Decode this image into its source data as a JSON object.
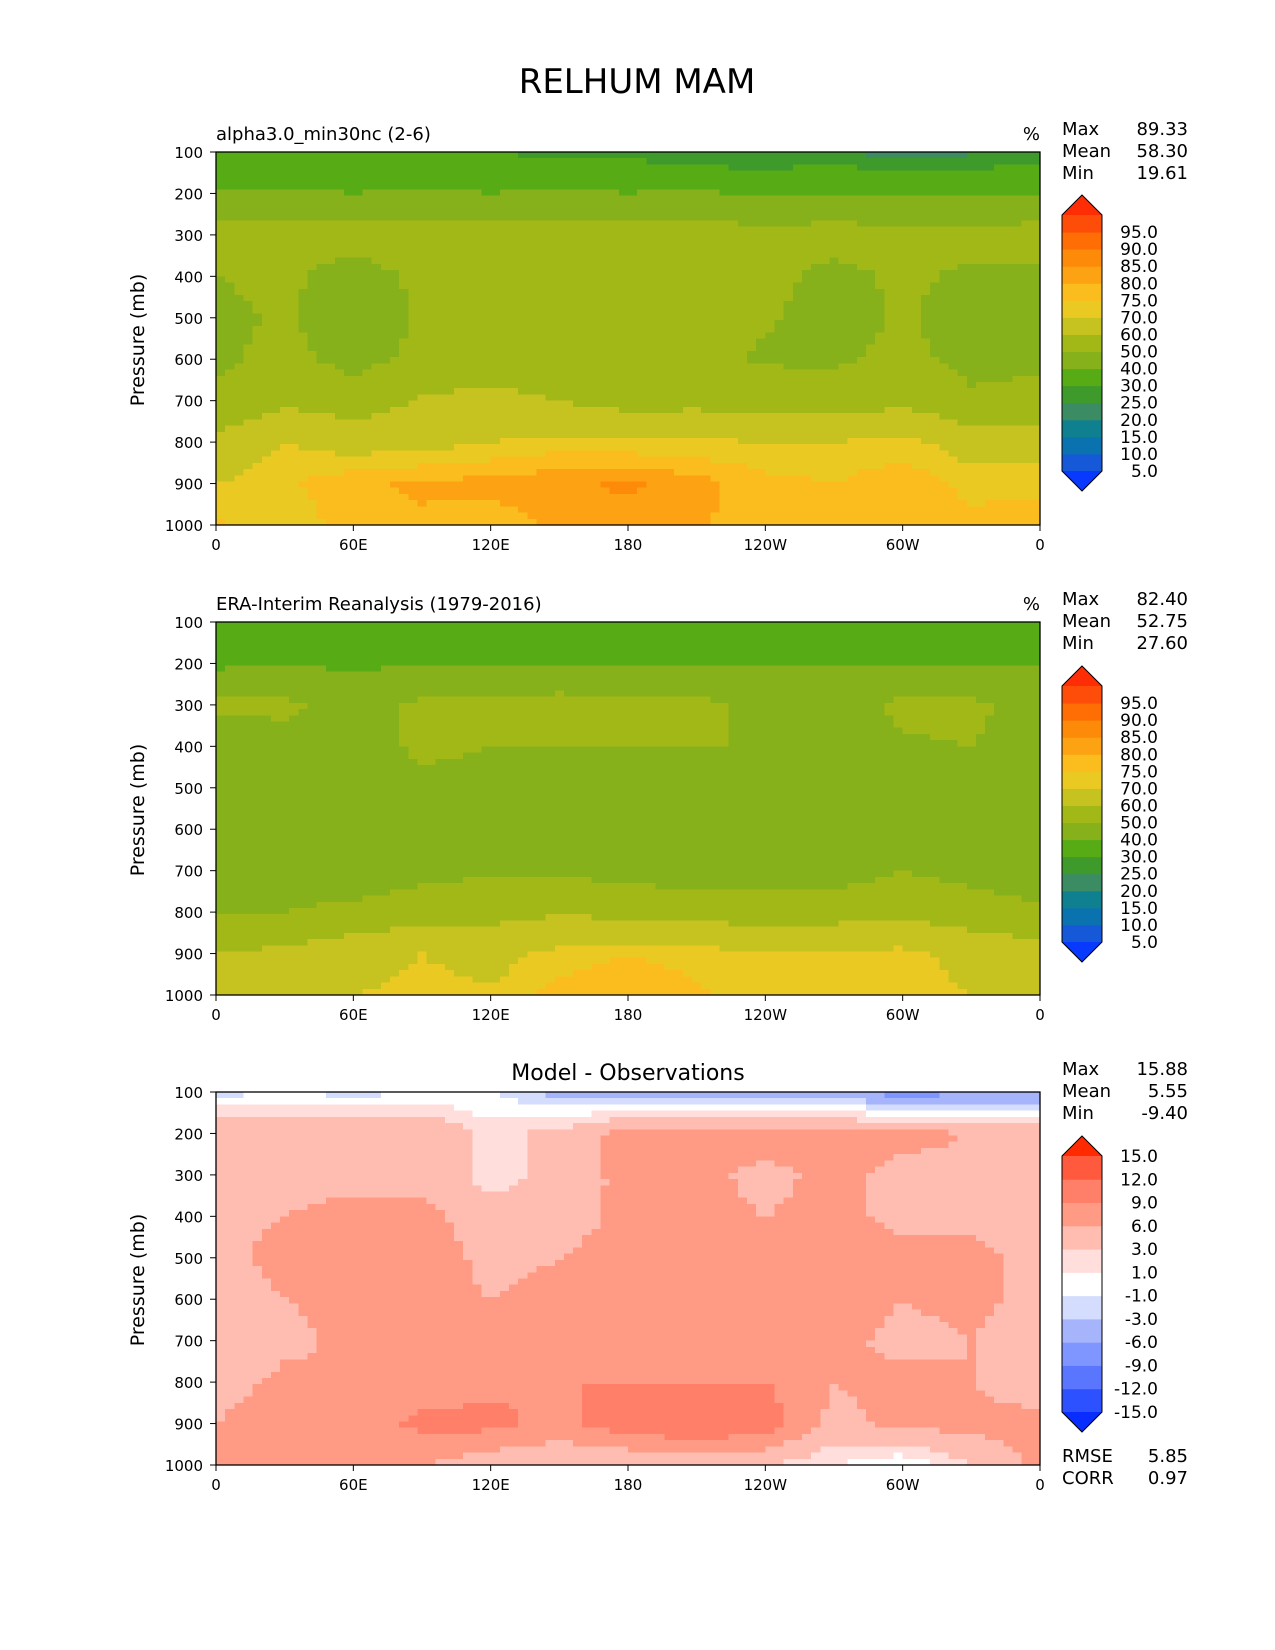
{
  "page_title": "RELHUM MAM",
  "colors": {
    "abs_levels": [
      "#0839ff",
      "#1659d8",
      "#0b72b0",
      "#0f8090",
      "#3b8c63",
      "#3f9a2c",
      "#57ac16",
      "#87b11a",
      "#a2b817",
      "#c6c21f",
      "#ebc923",
      "#fbbd1d",
      "#fda212",
      "#fe8a0a",
      "#fe6e05",
      "#fe4d08",
      "#fe2d06"
    ],
    "diff_levels": [
      "#0a2dff",
      "#2e51ff",
      "#5a76ff",
      "#7f95ff",
      "#a6b4fb",
      "#d4ddfd",
      "#ffffff",
      "#ffdedb",
      "#ffbcb0",
      "#ff9b85",
      "#ff7f69",
      "#ff5a3d",
      "#ff2a00"
    ],
    "frame": "#000000"
  },
  "chart_data": [
    {
      "type": "heatmap",
      "title": "alpha3.0_min30nc (2-6)",
      "units": "%",
      "stats": [
        {
          "label": "Max",
          "value": "89.33"
        },
        {
          "label": "Mean",
          "value": "58.30"
        },
        {
          "label": "Min",
          "value": "19.61"
        }
      ],
      "ylabel": "Pressure (mb)",
      "x_ticks": [
        "0",
        "60E",
        "120E",
        "180",
        "120W",
        "60W",
        "0"
      ],
      "y_ticks": [
        "100",
        "200",
        "300",
        "400",
        "500",
        "600",
        "700",
        "800",
        "900",
        "1000"
      ],
      "xlim": [
        0,
        360
      ],
      "ylim": [
        100,
        1000
      ],
      "colorbar_labels": [
        "95.0",
        "90.0",
        "85.0",
        "80.0",
        "75.0",
        "70.0",
        "60.0",
        "50.0",
        "40.0",
        "30.0",
        "25.0",
        "20.0",
        "15.0",
        "10.0",
        "5.0"
      ],
      "field": {
        "lon": [
          0,
          30,
          60,
          90,
          120,
          150,
          180,
          210,
          240,
          270,
          300,
          330,
          360
        ],
        "p": [
          100,
          200,
          300,
          400,
          500,
          600,
          700,
          800,
          900,
          1000
        ],
        "values": [
          [
            30,
            30,
            30,
            30,
            30,
            28,
            28,
            24,
            24,
            26,
            22,
            24,
            26
          ],
          [
            42,
            42,
            40,
            42,
            40,
            42,
            40,
            42,
            38,
            40,
            38,
            38,
            40
          ],
          [
            55,
            54,
            54,
            55,
            54,
            54,
            54,
            54,
            54,
            54,
            54,
            54,
            54
          ],
          [
            50,
            52,
            46,
            52,
            53,
            53,
            53,
            53,
            53,
            47,
            52,
            48,
            48
          ],
          [
            48,
            51,
            44,
            51,
            52,
            52,
            52,
            52,
            51,
            46,
            51,
            46,
            47
          ],
          [
            48,
            53,
            47,
            52,
            53,
            52,
            51,
            52,
            49,
            49,
            52,
            48,
            49
          ],
          [
            52,
            58,
            55,
            61,
            64,
            60,
            56,
            57,
            55,
            54,
            58,
            51,
            52
          ],
          [
            62,
            70,
            66,
            67,
            70,
            72,
            71,
            71,
            70,
            70,
            72,
            66,
            65
          ],
          [
            70,
            74,
            79,
            81,
            82,
            84,
            86,
            82,
            77,
            75,
            79,
            73,
            74
          ],
          [
            76,
            71,
            78,
            79,
            77,
            81,
            83,
            81,
            76,
            75,
            78,
            77,
            77
          ]
        ]
      }
    },
    {
      "type": "heatmap",
      "title": "ERA-Interim Reanalysis (1979-2016)",
      "units": "%",
      "stats": [
        {
          "label": "Max",
          "value": "82.40"
        },
        {
          "label": "Mean",
          "value": "52.75"
        },
        {
          "label": "Min",
          "value": "27.60"
        }
      ],
      "ylabel": "Pressure (mb)",
      "x_ticks": [
        "0",
        "60E",
        "120E",
        "180",
        "120W",
        "60W",
        "0"
      ],
      "y_ticks": [
        "100",
        "200",
        "300",
        "400",
        "500",
        "600",
        "700",
        "800",
        "900",
        "1000"
      ],
      "xlim": [
        0,
        360
      ],
      "ylim": [
        100,
        1000
      ],
      "colorbar_labels": [
        "95.0",
        "90.0",
        "85.0",
        "80.0",
        "75.0",
        "70.0",
        "60.0",
        "50.0",
        "40.0",
        "30.0",
        "25.0",
        "20.0",
        "15.0",
        "10.0",
        "5.0"
      ],
      "field": {
        "lon": [
          0,
          30,
          60,
          90,
          120,
          150,
          180,
          210,
          240,
          270,
          300,
          330,
          360
        ],
        "p": [
          100,
          200,
          300,
          400,
          500,
          600,
          700,
          800,
          900,
          1000
        ],
        "values": [
          [
            32,
            30,
            32,
            35,
            36,
            36,
            35,
            32,
            30,
            34,
            34,
            34,
            30
          ],
          [
            38,
            40,
            38,
            40,
            40,
            40,
            40,
            40,
            40,
            40,
            40,
            40,
            40
          ],
          [
            52,
            52,
            47,
            52,
            52,
            54,
            52,
            52,
            48,
            44,
            52,
            52,
            46
          ],
          [
            45,
            46,
            45,
            52,
            50,
            50,
            50,
            50,
            50,
            45,
            49,
            50,
            46
          ],
          [
            44,
            44,
            44,
            48,
            46,
            45,
            45,
            44,
            44,
            44,
            44,
            45,
            44
          ],
          [
            45,
            44,
            44,
            47,
            47,
            45,
            44,
            44,
            44,
            44,
            46,
            45,
            44
          ],
          [
            47,
            42,
            43,
            47,
            49,
            49,
            46,
            46,
            45,
            45,
            50,
            47,
            44
          ],
          [
            49,
            50,
            53,
            55,
            57,
            59,
            57,
            56,
            55,
            56,
            58,
            54,
            52
          ],
          [
            60,
            62,
            66,
            70,
            67,
            72,
            75,
            73,
            70,
            70,
            72,
            67,
            64
          ],
          [
            68,
            66,
            70,
            72,
            71,
            77,
            79,
            76,
            71,
            70,
            73,
            70,
            67
          ]
        ]
      }
    },
    {
      "type": "heatmap",
      "title": "Model - Observations",
      "stats": [
        {
          "label": "Max",
          "value": "15.88"
        },
        {
          "label": "Mean",
          "value": "5.55"
        },
        {
          "label": "Min",
          "value": "-9.40"
        }
      ],
      "ylabel": "Pressure (mb)",
      "x_ticks": [
        "0",
        "60E",
        "120E",
        "180",
        "120W",
        "60W",
        "0"
      ],
      "y_ticks": [
        "100",
        "200",
        "300",
        "400",
        "500",
        "600",
        "700",
        "800",
        "900",
        "1000"
      ],
      "xlim": [
        0,
        360
      ],
      "ylim": [
        100,
        1000
      ],
      "colorbar_labels": [
        "15.0",
        "12.0",
        "9.0",
        "6.0",
        "3.0",
        "1.0",
        "-1.0",
        "-3.0",
        "-6.0",
        "-9.0",
        "-12.0",
        "-15.0"
      ],
      "footer": [
        {
          "label": "RMSE",
          "value": "5.85"
        },
        {
          "label": "CORR",
          "value": "0.97"
        }
      ],
      "field": {
        "lon": [
          0,
          30,
          60,
          90,
          120,
          150,
          180,
          210,
          240,
          270,
          300,
          330,
          360
        ],
        "p": [
          100,
          200,
          300,
          400,
          500,
          600,
          700,
          800,
          900,
          1000
        ],
        "values": [
          [
            -2,
            -1,
            -2,
            -1,
            -1,
            -4,
            -4,
            -4,
            -4,
            -4,
            -8,
            -6,
            -6
          ],
          [
            6,
            6,
            6,
            6,
            2,
            4,
            7,
            7,
            8,
            7,
            7,
            6,
            5
          ],
          [
            5,
            5,
            5,
            5,
            2,
            4,
            7,
            7,
            5,
            7,
            5,
            5,
            5
          ],
          [
            5,
            6,
            7,
            7,
            4,
            4,
            7,
            7,
            6,
            7,
            5,
            5,
            5
          ],
          [
            5,
            7,
            8,
            8,
            5,
            6,
            8,
            8,
            7,
            8,
            7,
            7,
            5
          ],
          [
            4,
            6,
            7,
            7,
            6,
            7,
            8,
            9,
            7,
            8,
            6,
            7,
            5
          ],
          [
            3,
            5,
            7,
            6,
            6,
            6,
            7,
            7,
            6,
            7,
            5,
            6,
            3
          ],
          [
            4,
            7,
            6,
            7,
            8,
            9,
            9,
            9,
            9,
            6,
            7,
            6,
            4
          ],
          [
            6,
            9,
            7,
            10,
            10,
            8,
            11,
            12,
            11,
            5,
            7,
            7,
            7
          ],
          [
            7,
            7,
            6,
            6,
            4,
            3,
            3,
            4,
            3,
            1,
            -1,
            3,
            7
          ]
        ]
      }
    }
  ]
}
